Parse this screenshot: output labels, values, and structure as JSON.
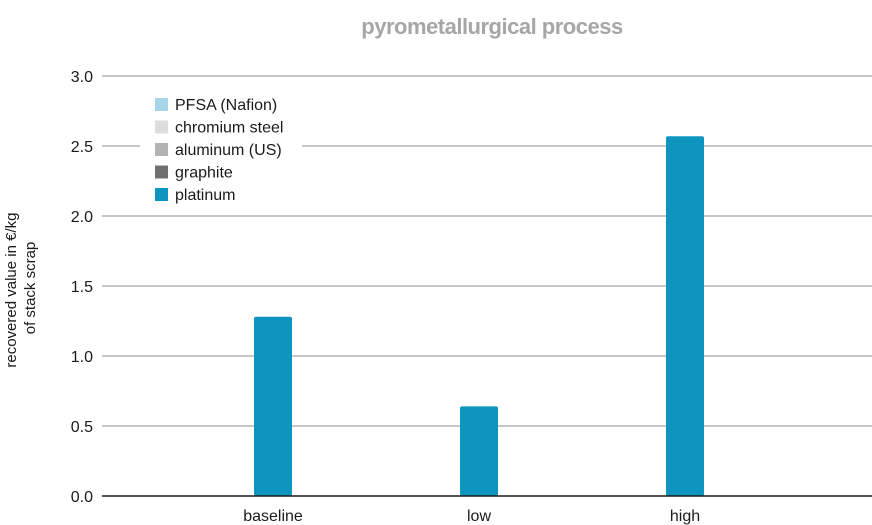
{
  "chart_data": {
    "type": "bar",
    "title": "pyrometallurgical process",
    "ylabel_lines": [
      "recovered value in €/kg",
      "of stack scrap"
    ],
    "xlabel": "",
    "categories": [
      "baseline",
      "low",
      "high"
    ],
    "ylim": [
      0,
      3.0
    ],
    "yticks": [
      "0.0",
      "0.5",
      "1.0",
      "1.5",
      "2.0",
      "2.5",
      "3.0"
    ],
    "grid": true,
    "stacked": true,
    "legend_position": "top-left",
    "series": [
      {
        "name": "PFSA (Nafion)",
        "color": "#a6d5ea",
        "values": [
          0,
          0,
          0
        ]
      },
      {
        "name": "chromium steel",
        "color": "#dcdcdc",
        "values": [
          0,
          0,
          0
        ]
      },
      {
        "name": "aluminum (US)",
        "color": "#b3b3b3",
        "values": [
          0,
          0,
          0
        ]
      },
      {
        "name": "graphite",
        "color": "#707070",
        "values": [
          0,
          0,
          0
        ]
      },
      {
        "name": "platinum",
        "color": "#0e95bf",
        "values": [
          1.28,
          0.64,
          2.57
        ]
      }
    ]
  }
}
